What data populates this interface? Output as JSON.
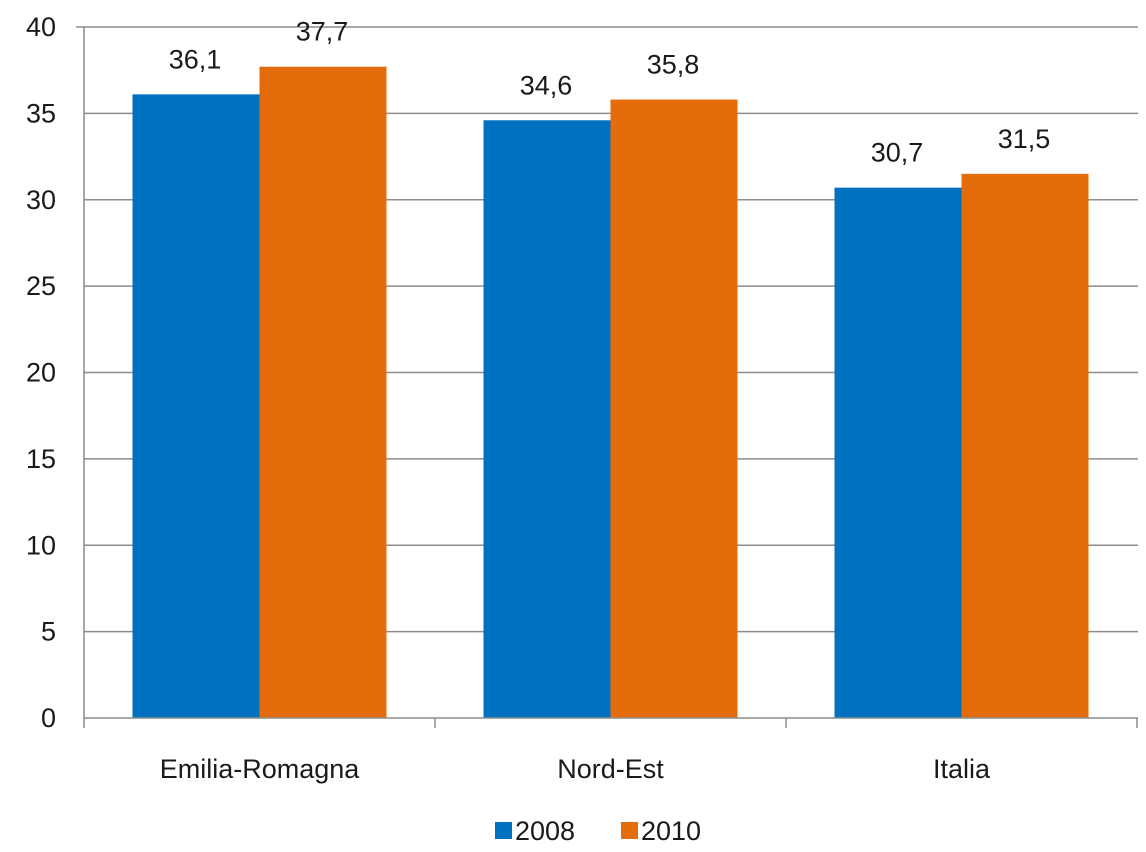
{
  "chart_data": {
    "type": "bar",
    "categories": [
      "Emilia-Romagna",
      "Nord-Est",
      "Italia"
    ],
    "series": [
      {
        "name": "2008",
        "values": [
          36.1,
          34.6,
          30.7
        ],
        "labels": [
          "36,1",
          "34,6",
          "30,7"
        ],
        "color": "#0070C0"
      },
      {
        "name": "2010",
        "values": [
          37.7,
          35.8,
          31.5
        ],
        "labels": [
          "37,7",
          "35,8",
          "31,5"
        ],
        "color": "#E46C0A"
      }
    ],
    "yticks": [
      0,
      5,
      10,
      15,
      20,
      25,
      30,
      35,
      40
    ],
    "ylim": [
      0,
      40
    ],
    "grid": true,
    "legend": "bottom-center"
  }
}
